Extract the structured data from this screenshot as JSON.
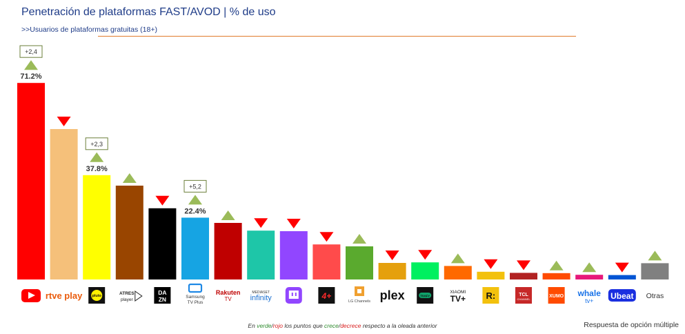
{
  "header": {
    "title": "Penetración de plataformas FAST/AVOD | % de uso",
    "subtitle": ">>Usuarios de plataformas gratuitas (18+)"
  },
  "footer": {
    "note_part1": "En ",
    "note_verde": "verde",
    "note_slash1": "/",
    "note_rojo": "rojo",
    "note_part2": " los puntos que ",
    "note_crece": "crece",
    "note_slash2": "/",
    "note_decrece": "decrece",
    "note_part3": " respecto a la oleada anterior",
    "multiple": "Respuesta de opción múltiple"
  },
  "colors": {
    "up": "#9bbb59",
    "down": "#ff0000",
    "delta_border": "#6b7f3a",
    "label": "#333333"
  },
  "chart_data": {
    "type": "bar",
    "title": "Penetración de plataformas FAST/AVOD | % de uso",
    "subtitle": ">>Usuarios de plataformas gratuitas (18+)",
    "ylim": [
      0,
      72.5
    ],
    "grid": false,
    "categories": [
      "YouTube",
      "RTVE Play",
      "Pluto TV",
      "ATRESplayer",
      "DAZN",
      "Samsung TV Plus",
      "Rakuten TV",
      "Mediaset Infinity",
      "Twitch",
      "+24",
      "LG Channels",
      "Plex",
      "Tivify",
      "Xiaomi TV+",
      "Runtime",
      "TCL Channel",
      "Xumo",
      "Whale TV+",
      "Ubeat",
      "Otras"
    ],
    "values": [
      71.2,
      54.5,
      37.8,
      34.0,
      25.8,
      22.4,
      20.5,
      17.7,
      17.5,
      12.7,
      12.0,
      6.0,
      6.2,
      4.9,
      2.8,
      2.4,
      2.3,
      1.7,
      1.6,
      5.9
    ],
    "value_labels": [
      "71.2%",
      "",
      "37.8%",
      "",
      "",
      "22.4%",
      "",
      "",
      "",
      "",
      "",
      "",
      "",
      "",
      "",
      "",
      "",
      "",
      "",
      ""
    ],
    "trend": [
      "up",
      "down",
      "up",
      "up",
      "down",
      "up",
      "up",
      "down",
      "down",
      "down",
      "up",
      "down",
      "down",
      "up",
      "down",
      "down",
      "up",
      "up",
      "down",
      "up"
    ],
    "delta_labels": [
      "+2,4",
      "",
      "+2,3",
      "",
      "",
      "+5,2",
      "",
      "",
      "",
      "",
      "",
      "",
      "",
      "",
      "",
      "",
      "",
      "",
      "",
      ""
    ],
    "bar_colors": [
      "#ff0000",
      "#f5c07a",
      "#ffff00",
      "#994500",
      "#000000",
      "#16a4e3",
      "#bf0000",
      "#1ec6a8",
      "#9146ff",
      "#ff4b4b",
      "#5aaa2e",
      "#e5a00d",
      "#00f060",
      "#ff6900",
      "#f3c10d",
      "#b22222",
      "#ff4b00",
      "#e6197a",
      "#0055d4",
      "#808080"
    ],
    "logo_texts": [
      "",
      "rtve play",
      "pluto",
      "ATRES player",
      "DA ZN",
      "Samsung TV Plus",
      "Rakuten TV",
      "MEDIASET infinity",
      "",
      "",
      "LG Channels",
      "plex",
      "TIVIFY",
      "XIAOMI TV+",
      "R:",
      "TCL CHANNEL",
      "XUMO",
      "whale tv+",
      "Ubeat",
      "Otras"
    ]
  }
}
